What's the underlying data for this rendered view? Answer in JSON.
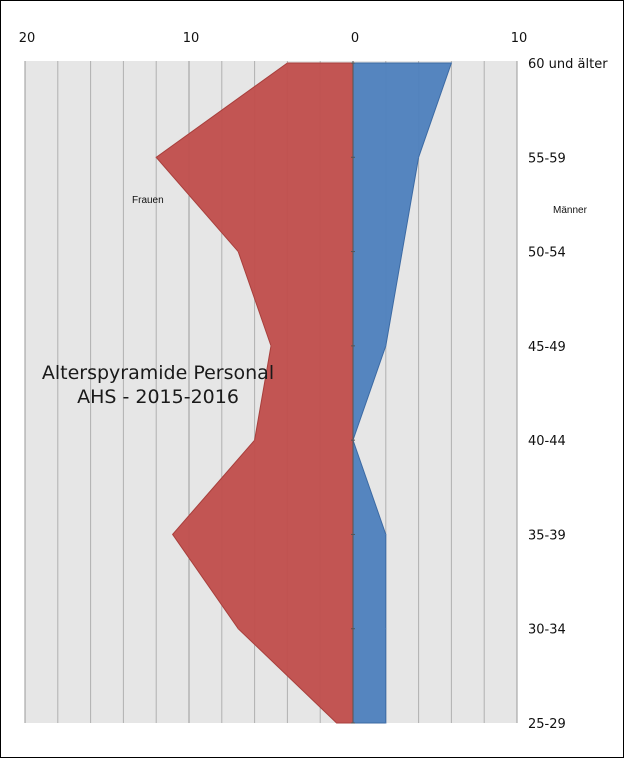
{
  "chart_data": {
    "type": "area",
    "title_lines": [
      "Alterspyramide Personal",
      "AHS - 2015-2016"
    ],
    "categories": [
      "25-29",
      "30-34",
      "35-39",
      "40-44",
      "45-49",
      "50-54",
      "55-59",
      "60 und älter"
    ],
    "x_tick_labels": [
      "20",
      "10",
      "0",
      "10"
    ],
    "x_tick_values": [
      -20,
      -10,
      0,
      10
    ],
    "xlim": [
      -20,
      10
    ],
    "grid": true,
    "series": [
      {
        "name": "Frauen",
        "side": "left",
        "color": "#c0504d",
        "values": [
          1,
          7,
          11,
          6,
          5,
          7,
          12,
          4
        ]
      },
      {
        "name": "Männer",
        "side": "right",
        "color": "#4f81bd",
        "values": [
          2,
          2,
          2,
          0,
          2,
          3,
          4,
          6
        ]
      }
    ]
  }
}
